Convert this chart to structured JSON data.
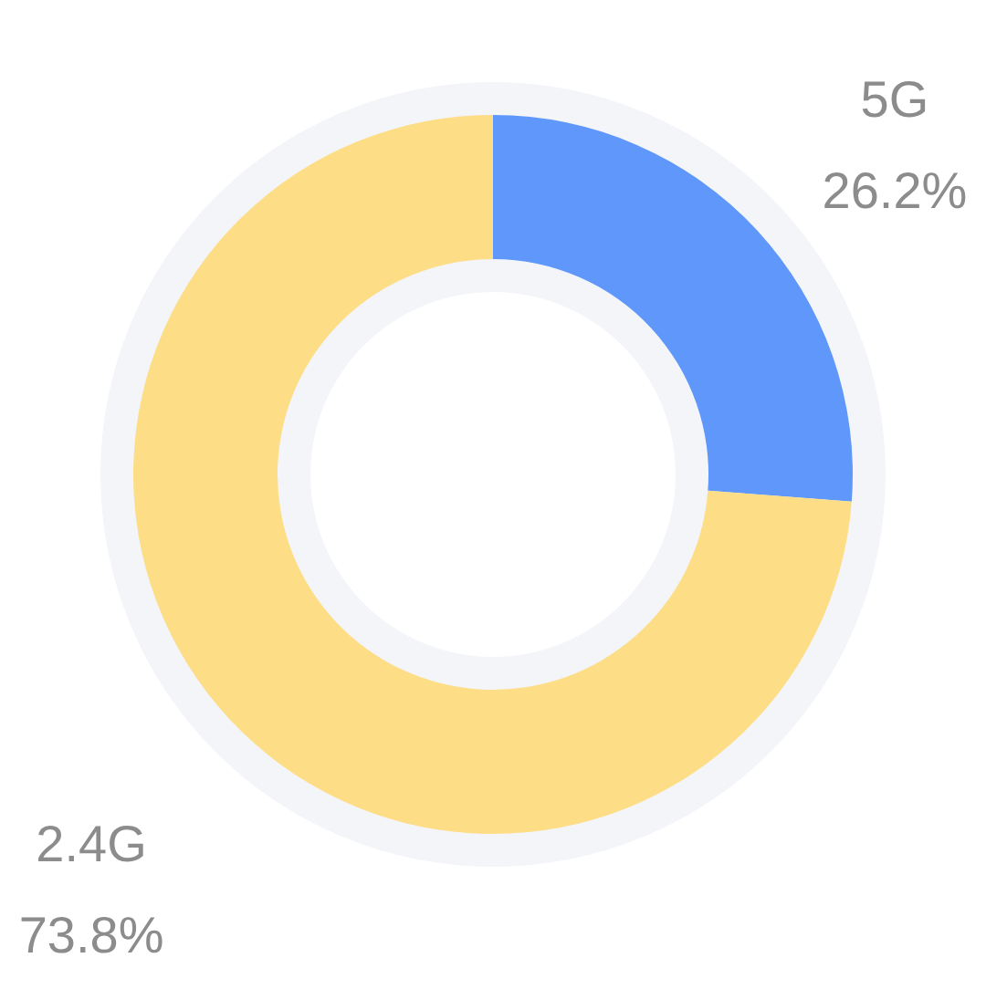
{
  "chart_data": {
    "type": "donut",
    "categories": [
      "5G",
      "2.4G"
    ],
    "values": [
      26.2,
      73.8
    ],
    "value_labels": [
      "26.2%",
      "73.8%"
    ],
    "colors": [
      "#5f97fb",
      "#fddd86"
    ]
  }
}
